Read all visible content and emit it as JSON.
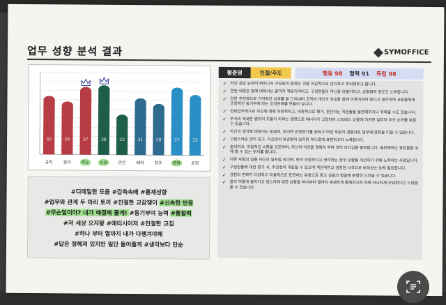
{
  "document": {
    "title": "업무 성향 분석 결과",
    "logo": "SYMOFFICE"
  },
  "chart_data": {
    "type": "bar",
    "categories": [
      "규칙",
      "성과",
      "주도",
      "신념",
      "안전",
      "배려",
      "창조",
      "변화",
      "공정"
    ],
    "values": [
      32,
      29,
      37,
      38,
      22,
      31,
      28,
      37,
      33
    ],
    "highlighted": [
      "주도",
      "신념",
      "변화"
    ],
    "crowned": [
      "주도",
      "신념"
    ],
    "ylim": [
      0,
      45
    ],
    "colors": [
      "#b83c44",
      "#b83c44",
      "#b83c44",
      "#1f5e4a",
      "#1f5e4a",
      "#2e6b8e",
      "#2e6b8e",
      "#2a8fc4",
      "#2a8fc4"
    ]
  },
  "tags": {
    "lines": [
      [
        {
          "t": "#디테일한 도움 #갑측속배 #통재성향",
          "hl": false
        }
      ],
      [
        {
          "t": "#업무와 관계 두 마리 토끼 #친절한 교감쟁이 ",
          "hl": false
        },
        {
          "t": "#신속한 반응",
          "hl": true
        }
      ],
      [
        {
          "t": "#무슨일이야? 내가 해결해 줄게! ",
          "hl": true
        },
        {
          "t": "#동기부여 능력 ",
          "hl": false
        },
        {
          "t": "#통찰력",
          "hl": true
        }
      ],
      [
        {
          "t": "#저 세상 오지랖 #애티시어저 #친절한 교집",
          "hl": false
        }
      ],
      [
        {
          "t": "#하나 부터 열까지 내가 다챙겨야해",
          "hl": false
        }
      ],
      [
        {
          "t": "#답은 정해져 있지만 일단 들어줄게 #생각보다 단순",
          "hl": false
        }
      ]
    ]
  },
  "profile": {
    "name": "황준영",
    "type": "친절/주도",
    "score1": "행동 98",
    "score2": "협력 91",
    "score3": "독립 98"
  },
  "traits": [
    "타인 공감 능력이 뛰어나서 구성원이 원하는 것을 직감적으로 인지하고 주의해주고 합니다.",
    "한번 내렸은 일에 대해서는 끝까지 책임지려하고, 구성원들의 자신을 의빵거하고, 상황해처 정도도 노력합니다.",
    "강한 추진력으로 가지적인 성과를 잘 드러내며 조직과 개인의 성공을 함께 이루어져려 한다고 생각하며 사람들에게 긍정적인 동기부여 하는 조직문화를 만들어 갑니다.",
    "반대급부적으로 자신에 대해 부정적이고, 비판적으로 평가, 판단하는 직원들을 불편해하거나 위축될 수도 있습니다.",
    "부서의 세세한 범위지 도맡아 하려는 경향으로 에너지가 고갈되어 스트레스 상황에 이르면 업무의 우선 순위를 놓칠 수 있습니다.",
    "자신의 생각에 대해서는 동질적, 정서적 안정문기를 원하고 어떤 부분의 경험자로 업무에 영향을 미칠 수 있습니다.",
    "고집스러운 면이 있고, 자신만의 완강함이 있지만 부드럽게 표현하고자 노력합니다.",
    "솔직하고, 직접적인 소통을 선호하며, 자신의 의견을 명확히 하여 의미 리더십을 발휘합니다. 불만해하는 동료들을 위해 할 수 있는 듯지를 줍니다.",
    "다른 사람의 일을 자신의 일처럼 여기며, 만약 부당하다고 생각하는 경우 상황을 개선하기 위해 노력하는 사람입니다.",
    "구성원들에 대한 평가 시, 주관성이 개입될 수 있으며 객관적이고 냉정한 시각으로 바라보는 능력 필요합니다.",
    "감정의 변화가 다양하고 직설적으로 표현하는 유형으로 중고 실음의 얼굴에 분명히 드러날 수 있습니다.",
    "일이 어떻게 돌아가고 있는지에 대한 상황을 하나부터 열까지 세세하게 통제하고자 하며 자나치게 간섭한다는 느낌을 줄 수 있습니다."
  ],
  "ui": {
    "scan_icon": "scan-text-icon"
  }
}
